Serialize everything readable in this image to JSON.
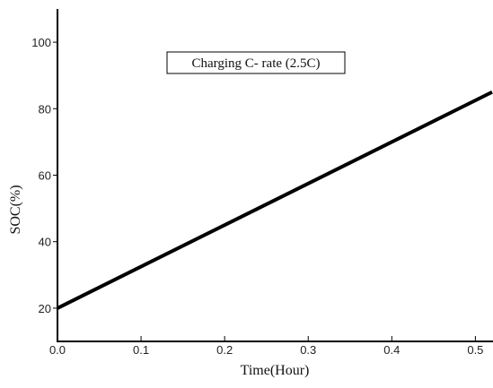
{
  "chart_data": {
    "type": "line",
    "title": "",
    "xlabel": "Time(Hour)",
    "ylabel": "SOC(%)",
    "xlim": [
      0.0,
      0.52
    ],
    "ylim": [
      10,
      110
    ],
    "xticks": [
      0.0,
      0.1,
      0.2,
      0.3,
      0.4,
      0.5
    ],
    "xtick_labels": [
      "0.0",
      "0.1",
      "0.2",
      "0.3",
      "0.4",
      "0.5"
    ],
    "yticks": [
      20,
      40,
      60,
      80,
      100
    ],
    "ytick_labels": [
      "20",
      "40",
      "60",
      "80",
      "100"
    ],
    "grid": false,
    "annotation": "Charging C- rate (2.5C)",
    "series": [
      {
        "x": [
          0.0,
          0.52
        ],
        "y": [
          20,
          85
        ],
        "color": "#000000"
      }
    ]
  }
}
